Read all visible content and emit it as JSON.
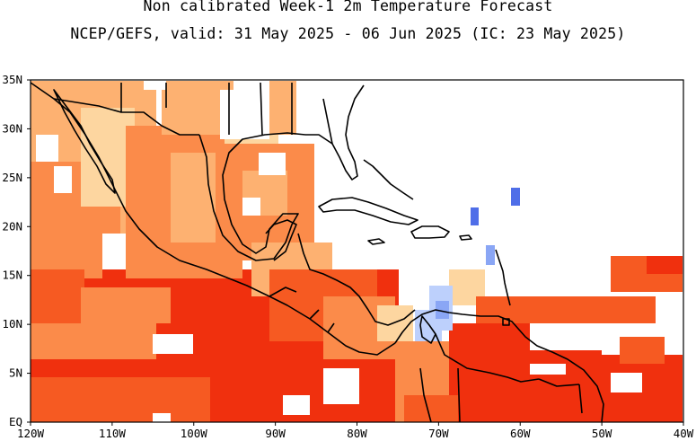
{
  "title": "Non calibrated Week-1 2m Temperature Forecast",
  "subtitle": "NCEP/GEFS, valid: 31 May 2025 - 06 Jun 2025 (IC: 23 May 2025)",
  "map": {
    "lon_range": [
      -120,
      -40
    ],
    "lat_range": [
      0,
      35
    ],
    "lon_ticks": [
      {
        "value": -120,
        "label": "120W"
      },
      {
        "value": -110,
        "label": "110W"
      },
      {
        "value": -100,
        "label": "100W"
      },
      {
        "value": -90,
        "label": "90W"
      },
      {
        "value": -80,
        "label": "80W"
      },
      {
        "value": -70,
        "label": "70W"
      },
      {
        "value": -60,
        "label": "60W"
      },
      {
        "value": -50,
        "label": "50W"
      },
      {
        "value": -40,
        "label": "40W"
      }
    ],
    "lat_ticks": [
      {
        "value": 0,
        "label": "EQ"
      },
      {
        "value": 5,
        "label": "5N"
      },
      {
        "value": 10,
        "label": "10N"
      },
      {
        "value": 15,
        "label": "15N"
      },
      {
        "value": 20,
        "label": "20N"
      },
      {
        "value": 25,
        "label": "25N"
      },
      {
        "value": 30,
        "label": "30N"
      },
      {
        "value": 35,
        "label": "35N"
      }
    ],
    "colors": {
      "warm1": "#fdd6a0",
      "warm2": "#fdb171",
      "warm3": "#fb8b4a",
      "warm4": "#f65a22",
      "warm5": "#f0300e",
      "cool1": "#bdd0fc",
      "cool2": "#8aa6f5",
      "cool3": "#4f6ee8",
      "coast": "#000000"
    }
  }
}
